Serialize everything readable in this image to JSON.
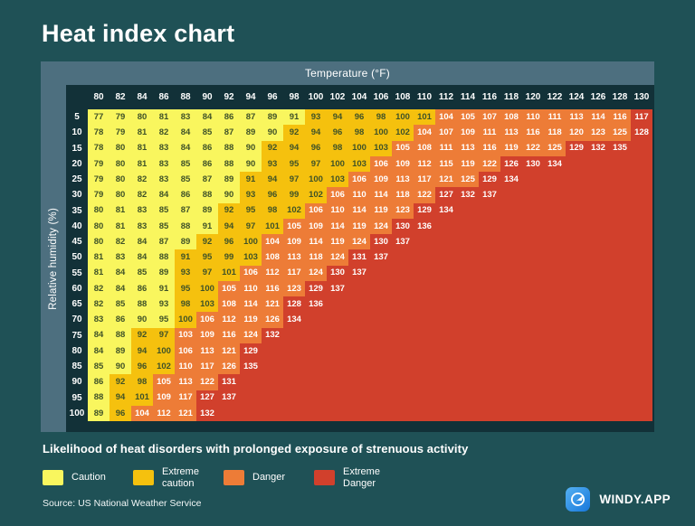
{
  "title": "Heat index chart",
  "footer": {
    "likelihood": "Likelihood of heat disorders with prolonged exposure of strenuous activity",
    "source": "Source: US National Weather Service",
    "brand": "WINDY.APP"
  },
  "colors": {
    "background": "#1F5156",
    "axis_bar": "#4D6F7F",
    "card": "#123138",
    "caution": "#F9F65E",
    "extreme_caution": "#F5C10E",
    "danger": "#ED7C37",
    "extreme_danger": "#D1402C",
    "cell_text_dark": "#3F5228",
    "cell_text_light": "#FFFFFF",
    "logo_blue": "#2196F3"
  },
  "chart_data": {
    "type": "heatmap",
    "title": "Heat index chart",
    "xlabel": "Temperature (°F)",
    "ylabel": "Relative humidity (%)",
    "x_categories": [
      80,
      82,
      84,
      86,
      88,
      90,
      92,
      94,
      96,
      98,
      100,
      102,
      104,
      106,
      108,
      110,
      112,
      114,
      116,
      118,
      120,
      122,
      124,
      126,
      128,
      130
    ],
    "y_categories": [
      5,
      10,
      15,
      20,
      25,
      30,
      35,
      40,
      45,
      50,
      55,
      60,
      65,
      70,
      75,
      80,
      85,
      90,
      95,
      100
    ],
    "zone_note": "gold/orange/red are the column indexes where Extreme caution, Danger and Extreme Danger zones start; cells past the end of values are empty Extreme Danger cells",
    "series": [
      {
        "rh": "5",
        "values": [
          77,
          79,
          80,
          81,
          83,
          84,
          86,
          87,
          89,
          91,
          93,
          94,
          96,
          98,
          100,
          101,
          104,
          105,
          107,
          108,
          110,
          111,
          113,
          114,
          116,
          117
        ],
        "gold": 10,
        "orange": 16,
        "red": 25
      },
      {
        "rh": "10",
        "values": [
          78,
          79,
          81,
          82,
          84,
          85,
          87,
          89,
          90,
          92,
          94,
          96,
          98,
          100,
          102,
          104,
          107,
          109,
          111,
          113,
          116,
          118,
          120,
          123,
          125,
          128
        ],
        "gold": 9,
        "orange": 15,
        "red": 25
      },
      {
        "rh": "15",
        "values": [
          78,
          80,
          81,
          83,
          84,
          86,
          88,
          90,
          92,
          94,
          96,
          98,
          100,
          103,
          105,
          108,
          111,
          113,
          116,
          119,
          122,
          125,
          129,
          132,
          135
        ],
        "gold": 8,
        "orange": 14,
        "red": 22
      },
      {
        "rh": "20",
        "values": [
          79,
          80,
          81,
          83,
          85,
          86,
          88,
          90,
          93,
          95,
          97,
          100,
          103,
          106,
          109,
          112,
          115,
          119,
          122,
          126,
          130,
          134
        ],
        "gold": 8,
        "orange": 13,
        "red": 19
      },
      {
        "rh": "25",
        "values": [
          79,
          80,
          82,
          83,
          85,
          87,
          89,
          91,
          94,
          97,
          100,
          103,
          106,
          109,
          113,
          117,
          121,
          125,
          129,
          134
        ],
        "gold": 7,
        "orange": 12,
        "red": 18
      },
      {
        "rh": "30",
        "values": [
          79,
          80,
          82,
          84,
          86,
          88,
          90,
          93,
          96,
          99,
          102,
          106,
          110,
          114,
          118,
          122,
          127,
          132,
          137
        ],
        "gold": 7,
        "orange": 11,
        "red": 16
      },
      {
        "rh": "35",
        "values": [
          80,
          81,
          83,
          85,
          87,
          89,
          92,
          95,
          98,
          102,
          106,
          110,
          114,
          119,
          123,
          129,
          134
        ],
        "gold": 6,
        "orange": 10,
        "red": 15
      },
      {
        "rh": "40",
        "values": [
          80,
          81,
          83,
          85,
          88,
          91,
          94,
          97,
          101,
          105,
          109,
          114,
          119,
          124,
          130,
          136
        ],
        "gold": 6,
        "orange": 9,
        "red": 14
      },
      {
        "rh": "45",
        "values": [
          80,
          82,
          84,
          87,
          89,
          92,
          96,
          100,
          104,
          109,
          114,
          119,
          124,
          130,
          137
        ],
        "gold": 5,
        "orange": 8,
        "red": 13
      },
      {
        "rh": "50",
        "values": [
          81,
          83,
          84,
          88,
          91,
          95,
          99,
          103,
          108,
          113,
          118,
          124,
          131,
          137
        ],
        "gold": 4,
        "orange": 8,
        "red": 12
      },
      {
        "rh": "55",
        "values": [
          81,
          84,
          85,
          89,
          93,
          97,
          101,
          106,
          112,
          117,
          124,
          130,
          137
        ],
        "gold": 4,
        "orange": 7,
        "red": 11
      },
      {
        "rh": "60",
        "values": [
          82,
          84,
          86,
          91,
          95,
          100,
          105,
          110,
          116,
          123,
          129,
          137
        ],
        "gold": 4,
        "orange": 6,
        "red": 10
      },
      {
        "rh": "65",
        "values": [
          82,
          85,
          88,
          93,
          98,
          103,
          108,
          114,
          121,
          128,
          136
        ],
        "gold": 4,
        "orange": 6,
        "red": 9
      },
      {
        "rh": "70",
        "values": [
          83,
          86,
          90,
          95,
          100,
          106,
          112,
          119,
          126,
          134
        ],
        "gold": 4,
        "orange": 5,
        "red": 9
      },
      {
        "rh": "75",
        "values": [
          84,
          88,
          92,
          97,
          103,
          109,
          116,
          124,
          132
        ],
        "gold": 2,
        "orange": 4,
        "red": 8
      },
      {
        "rh": "80",
        "values": [
          84,
          89,
          94,
          100,
          106,
          113,
          121,
          129
        ],
        "gold": 2,
        "orange": 4,
        "red": 7
      },
      {
        "rh": "85",
        "values": [
          85,
          90,
          96,
          102,
          110,
          117,
          126,
          135
        ],
        "gold": 2,
        "orange": 4,
        "red": 7
      },
      {
        "rh": "90",
        "values": [
          86,
          92,
          98,
          105,
          113,
          122,
          131
        ],
        "gold": 1,
        "orange": 3,
        "red": 6
      },
      {
        "rh": "95",
        "values": [
          88,
          94,
          101,
          109,
          117,
          127,
          137
        ],
        "gold": 1,
        "orange": 3,
        "red": 5
      },
      {
        "rh": "100",
        "values": [
          89,
          96,
          104,
          112,
          121,
          132
        ],
        "gold": 1,
        "orange": 2,
        "red": 5
      }
    ],
    "legend": [
      {
        "label": "Caution",
        "color": "#F9F65E"
      },
      {
        "label": "Extreme caution",
        "color": "#F5C10E"
      },
      {
        "label": "Danger",
        "color": "#ED7C37"
      },
      {
        "label": "Extreme Danger",
        "color": "#D1402C"
      }
    ],
    "legend_position": "bottom"
  }
}
